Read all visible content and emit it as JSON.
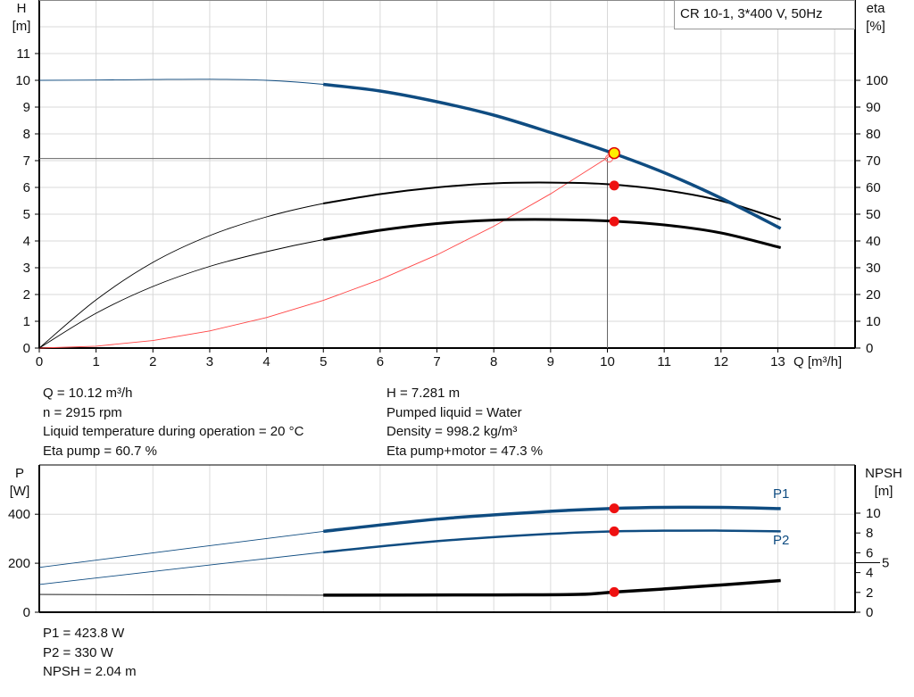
{
  "chart_data": [
    {
      "type": "line",
      "title": "CR 10-1, 3*400 V, 50Hz",
      "xlabel": "Q [m³/h]",
      "ylabel": "H\n[m]",
      "ylabel_lines": [
        "H",
        "[m]"
      ],
      "y2label_lines": [
        "eta",
        "[%]"
      ],
      "xlim": [
        0,
        14
      ],
      "ylim": [
        0,
        13
      ],
      "y2lim": [
        0,
        130
      ],
      "xticks": [
        0,
        1,
        2,
        3,
        4,
        5,
        6,
        7,
        8,
        9,
        10,
        11,
        12,
        13
      ],
      "yticks": [
        0,
        1,
        2,
        3,
        4,
        5,
        6,
        7,
        8,
        9,
        10,
        11
      ],
      "y2ticks": [
        0,
        10,
        20,
        30,
        40,
        50,
        60,
        70,
        80,
        90,
        100
      ],
      "grid": true,
      "series": [
        {
          "role": "head",
          "axis": "left",
          "color": "#0f4c81",
          "x": [
            0,
            1,
            2,
            3,
            4,
            5,
            6,
            7,
            8,
            9,
            10,
            11,
            12,
            13.05
          ],
          "y": [
            10,
            10.01,
            10.03,
            10.04,
            10.0,
            9.85,
            9.6,
            9.2,
            8.7,
            8.05,
            7.35,
            6.55,
            5.6,
            4.47
          ]
        },
        {
          "role": "eta-pump",
          "axis": "right",
          "color": "#000000",
          "x": [
            0,
            1,
            2,
            3,
            4,
            5,
            6,
            7,
            8,
            9,
            10,
            11,
            12,
            13.05
          ],
          "y": [
            0,
            18,
            32,
            42,
            49,
            54,
            57.5,
            60,
            61.5,
            61.8,
            61.2,
            59,
            55,
            48
          ]
        },
        {
          "role": "eta-pump-motor",
          "axis": "right",
          "color": "#000000",
          "x": [
            0,
            1,
            2,
            3,
            4,
            5,
            6,
            7,
            8,
            9,
            10,
            11,
            12,
            13.05
          ],
          "y": [
            0,
            13,
            23,
            30.5,
            36,
            40.5,
            44,
            46.5,
            47.8,
            48,
            47.5,
            46,
            43,
            37.5
          ]
        },
        {
          "role": "system-curve",
          "axis": "left",
          "color": "#ff4444",
          "x": [
            0,
            1,
            2,
            3,
            4,
            5,
            6,
            7,
            8,
            9,
            10,
            10.12
          ],
          "y": [
            0,
            0.07,
            0.28,
            0.64,
            1.14,
            1.78,
            2.56,
            3.48,
            4.55,
            5.76,
            7.11,
            7.281
          ]
        }
      ],
      "operating_point": {
        "q": 10.12,
        "h": 7.281,
        "eta_pump": 60.7,
        "eta_total": 47.3
      }
    },
    {
      "type": "line",
      "ylabel_lines": [
        "P",
        "[W]"
      ],
      "y2label_lines": [
        "NPSH",
        "[m]"
      ],
      "ylim": [
        0,
        600
      ],
      "y2lim": [
        0,
        15
      ],
      "yticks": [
        0,
        200,
        400
      ],
      "y2ticks": [
        0,
        2,
        4,
        5,
        6,
        8,
        10
      ],
      "series": [
        {
          "name": "P1",
          "axis": "left",
          "color": "#0f4c81",
          "x": [
            0,
            5,
            7,
            9,
            10.12,
            11,
            12,
            13.05
          ],
          "y": [
            183,
            330,
            380,
            412,
            423.8,
            428,
            428,
            423
          ]
        },
        {
          "name": "P2",
          "axis": "left",
          "color": "#0f4c81",
          "x": [
            0,
            5,
            7,
            9,
            10.12,
            11,
            12,
            13.05
          ],
          "y": [
            113,
            245,
            290,
            320,
            330,
            333,
            333,
            330
          ]
        },
        {
          "role": "npsh",
          "axis": "right",
          "color": "#000000",
          "x": [
            0,
            5,
            8,
            9.5,
            10.12,
            11,
            12,
            13.05
          ],
          "y": [
            1.8,
            1.72,
            1.75,
            1.8,
            2.04,
            2.35,
            2.75,
            3.2
          ]
        }
      ],
      "operating_point": {
        "q": 10.12,
        "p1": 423.8,
        "p2": 330,
        "npsh": 2.04
      }
    }
  ],
  "info_top": {
    "left": [
      "Q = 10.12 m³/h",
      "n = 2915 rpm",
      "Liquid temperature during operation = 20 °C",
      "Eta pump = 60.7 %"
    ],
    "right": [
      "H = 7.281 m",
      "Pumped liquid = Water",
      "Density = 998.2 kg/m³",
      "Eta pump+motor = 47.3 %"
    ]
  },
  "info_bottom": [
    "P1 = 423.8 W",
    "P2 = 330 W",
    "NPSH = 2.04 m"
  ]
}
